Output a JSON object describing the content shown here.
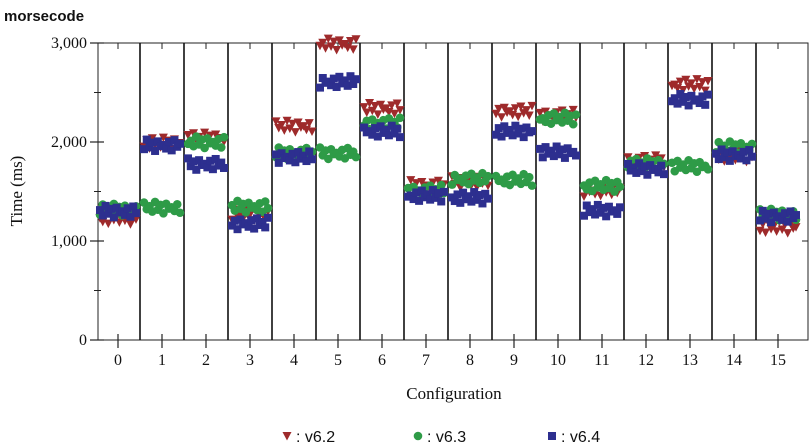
{
  "chart_data": {
    "type": "scatter",
    "title": "morsecode",
    "xlabel": "Configuration",
    "ylabel": "Time (ms)",
    "ylim": [
      0,
      3000
    ],
    "yticks": [
      0,
      1000,
      2000,
      3000
    ],
    "ytick_labels": [
      "0",
      "1,000",
      "2,000",
      "3,000"
    ],
    "categories": [
      "0",
      "1",
      "2",
      "3",
      "4",
      "5",
      "6",
      "7",
      "8",
      "9",
      "10",
      "11",
      "12",
      "13",
      "14",
      "15"
    ],
    "legend_position": "bottom",
    "grid": false,
    "series": [
      {
        "name": "v6.2",
        "legend_label": ": v6.2",
        "marker": "triangle-down",
        "color": "#9e2a2b",
        "values": [
          1230,
          1990,
          2040,
          1270,
          2160,
          2990,
          2340,
          1560,
          1600,
          2310,
          2270,
          1510,
          1810,
          2580,
          1860,
          1140
        ]
      },
      {
        "name": "v6.3",
        "legend_label": ": v6.3",
        "marker": "circle",
        "color": "#2e9b47",
        "values": [
          1320,
          1340,
          2000,
          1350,
          1890,
          1890,
          2190,
          1510,
          1630,
          1620,
          2240,
          1560,
          1780,
          1760,
          1950,
          1270
        ]
      },
      {
        "name": "v6.4",
        "legend_label": ": v6.4",
        "marker": "square",
        "color": "#2d2f8f",
        "values": [
          1300,
          1970,
          1780,
          1180,
          1850,
          2610,
          2110,
          1460,
          1440,
          2110,
          1900,
          1310,
          1730,
          2430,
          1870,
          1250
        ]
      }
    ]
  }
}
